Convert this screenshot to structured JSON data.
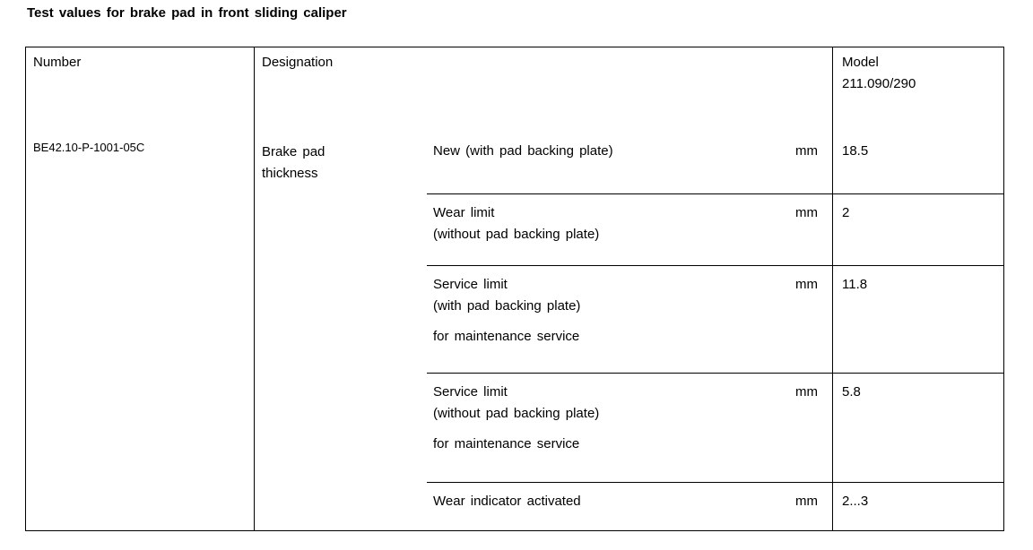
{
  "title": "Test values for brake pad in front sliding caliper",
  "table": {
    "header": {
      "number": "Number",
      "designation": "Designation",
      "model_line1": "Model",
      "model_line2": "211.090/290"
    },
    "row": {
      "number": "BE42.10-P-1001-05C",
      "designation": "Brake pad thickness",
      "specs": [
        {
          "line1": "New (with pad backing plate)",
          "line2": "",
          "note": "",
          "unit": "mm",
          "value": "18.5"
        },
        {
          "line1": "Wear limit",
          "line2": "(without pad backing plate)",
          "note": "",
          "unit": "mm",
          "value": "2"
        },
        {
          "line1": "Service limit",
          "line2": "(with pad backing plate)",
          "note": "for maintenance service",
          "unit": "mm",
          "value": "11.8"
        },
        {
          "line1": "Service limit",
          "line2": "(without pad backing plate)",
          "note": "for maintenance service",
          "unit": "mm",
          "value": "5.8"
        },
        {
          "line1": "Wear indicator activated",
          "line2": "",
          "note": "",
          "unit": "mm",
          "value": "2...3"
        }
      ]
    }
  }
}
